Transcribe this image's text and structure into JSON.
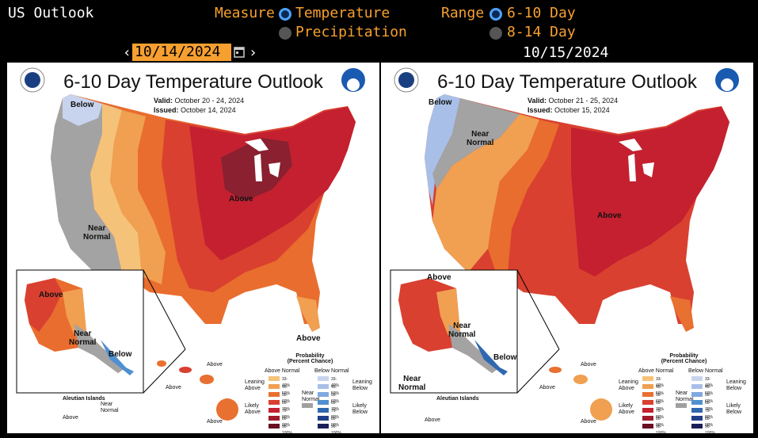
{
  "app_title": "US Outlook",
  "measure": {
    "label": "Measure",
    "options": [
      {
        "label": "Temperature",
        "selected": true
      },
      {
        "label": "Precipitation",
        "selected": false
      }
    ]
  },
  "range": {
    "label": "Range",
    "options": [
      {
        "label": "6-10 Day",
        "selected": true
      },
      {
        "label": "8-14 Day",
        "selected": false
      }
    ]
  },
  "date_picker": {
    "value": "10/14/2024",
    "prev": "‹",
    "next": "›"
  },
  "second_date": "10/15/2024",
  "maps": [
    {
      "title": "6-10 Day Temperature Outlook",
      "valid_label": "Valid:",
      "valid": "October 20 - 24, 2024",
      "issued_label": "Issued:",
      "issued": "October 14, 2024",
      "labels": [
        "Below",
        "Near\nNormal",
        "Above",
        "Above",
        "Above",
        "Near\nNormal",
        "Below",
        "Aleutian Islands",
        "Above",
        "Above",
        "Above",
        "Near\nNormal",
        "Above"
      ]
    },
    {
      "title": "6-10 Day Temperature Outlook",
      "valid_label": "Valid:",
      "valid": "October 21 - 25, 2024",
      "issued_label": "Issued:",
      "issued": "October 15, 2024",
      "labels": [
        "Below",
        "Near\nNormal",
        "Above",
        "Above",
        "Near\nNormal",
        "Below",
        "Near\nNormal",
        "Aleutian Islands",
        "Above",
        "Above",
        "Above",
        "Above"
      ]
    }
  ],
  "legend": {
    "title": "Probability\n(Percent Chance)",
    "above_header": "Above Normal",
    "below_header": "Below Normal",
    "near_label": "Near\nNormal",
    "leaning_above": "Leaning\nAbove",
    "likely_above": "Likely\nAbove",
    "leaning_below": "Leaning\nBelow",
    "likely_below": "Likely\nBelow",
    "ranges": [
      "33-40%",
      "40-50%",
      "50-60%",
      "60-70%",
      "70-80%",
      "80-90%",
      "90-100%"
    ],
    "above_colors": [
      "#f5c27a",
      "#f0a050",
      "#e87030",
      "#d94030",
      "#c42030",
      "#a01a2a",
      "#6a1020"
    ],
    "below_colors": [
      "#c8d4ee",
      "#a8c0e8",
      "#80a8e0",
      "#5090d0",
      "#3068b0",
      "#203f8a",
      "#1a1f5a"
    ],
    "near_color": "#a0a0a0"
  },
  "colors": {
    "accent": "#f7a030",
    "radio_on": "#4ea3ff"
  }
}
